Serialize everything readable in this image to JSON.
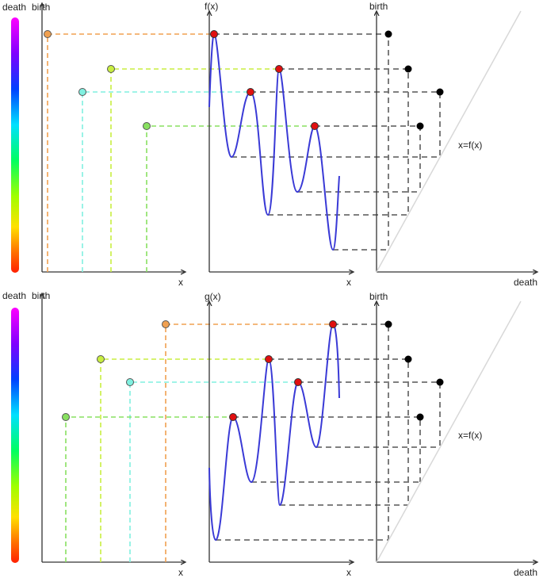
{
  "labels": {
    "death": "death",
    "birth": "birth",
    "x": "x",
    "f": "f(x)",
    "g": "g(x)",
    "diag": "x=f(x)"
  },
  "colors": {
    "curve": "#3a3ad6",
    "critical_point": "#e01010",
    "diagram_point": "#000000",
    "connector": "#6e6e6e",
    "diagonal": "#d8d8d8",
    "orange": "#f0a050",
    "yellow_green": "#c8ee40",
    "cyan": "#80f0e0",
    "green": "#88e060"
  },
  "colorbar": [
    "#ff00ff",
    "#8000ff",
    "#0040ff",
    "#00e0ff",
    "#00ff60",
    "#a0ff00",
    "#ffe000",
    "#ff7000",
    "#ff2000"
  ],
  "panels": [
    {
      "function_label": "f(x)",
      "pairs": [
        {
          "color": "orange",
          "birth": 0.92,
          "death": 0.03
        },
        {
          "color": "yellow_green",
          "birth": 0.75,
          "death": 0.13
        },
        {
          "color": "cyan",
          "birth": 0.64,
          "death": 0.25
        },
        {
          "color": "green",
          "birth": 0.48,
          "death": 0.2
        }
      ]
    },
    {
      "function_label": "g(x)",
      "pairs": [
        {
          "color": "orange",
          "birth": 0.92,
          "death": 0.03
        },
        {
          "color": "yellow_green",
          "birth": 0.75,
          "death": 0.13
        },
        {
          "color": "cyan",
          "birth": 0.64,
          "death": 0.25
        },
        {
          "color": "green",
          "birth": 0.48,
          "death": 0.2
        }
      ]
    }
  ]
}
